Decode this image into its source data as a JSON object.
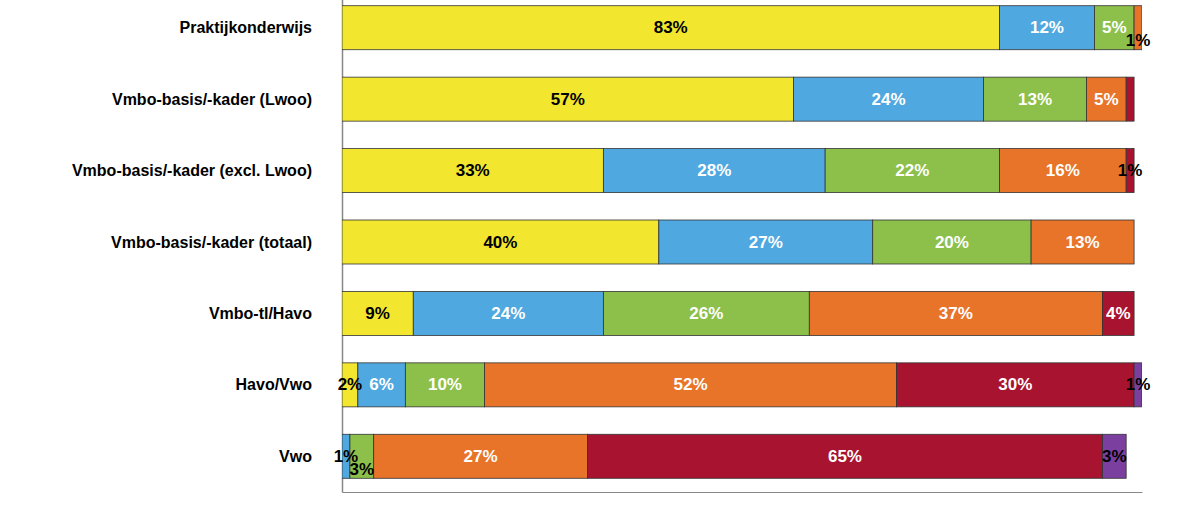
{
  "chart_data": {
    "type": "bar",
    "orientation": "horizontal",
    "stacked": true,
    "data_labels": true,
    "tick_labels": "y",
    "grid": false,
    "categories": [
      "Praktijkonderwijs",
      "Vmbo-basis/-kader (Lwoo)",
      "Vmbo-basis/-kader (excl. Lwoo)",
      "Vmbo-basis/-kader (totaal)",
      "Vmbo-tl/Havo",
      "Havo/Vwo",
      "Vwo"
    ],
    "xlim": [
      0,
      101
    ],
    "xticks": [],
    "series": [
      {
        "color": "#f2e62e",
        "values": [
          83,
          57,
          33,
          40,
          9,
          2,
          0
        ],
        "value_labels": [
          "83%",
          "57%",
          "33%",
          "40%",
          "9%",
          "2%",
          null
        ]
      },
      {
        "color": "#4fa8e0",
        "values": [
          12,
          24,
          28,
          27,
          24,
          6,
          1
        ],
        "value_labels": [
          "12%",
          "24%",
          "28%",
          "27%",
          "24%",
          "6%",
          "1%"
        ]
      },
      {
        "color": "#8cc04a",
        "values": [
          5,
          13,
          22,
          20,
          26,
          10,
          3
        ],
        "value_labels": [
          "5%",
          "13%",
          "22%",
          "20%",
          "26%",
          "10%",
          "3%"
        ]
      },
      {
        "color": "#e8742a",
        "values": [
          1,
          5,
          16,
          13,
          37,
          52,
          27
        ],
        "value_labels": [
          "1%",
          "5%",
          "16%",
          "13%",
          "37%",
          "52%",
          "27%"
        ]
      },
      {
        "color": "#a8132f",
        "values": [
          0,
          1,
          1,
          0,
          4,
          30,
          65
        ],
        "value_labels": [
          null,
          null,
          "1%",
          null,
          "4%",
          "30%",
          "65%"
        ]
      },
      {
        "color": "#7b3fa0",
        "values": [
          0,
          0,
          0,
          0,
          0,
          1,
          3
        ],
        "value_labels": [
          null,
          null,
          null,
          null,
          null,
          "1%",
          "3%"
        ]
      }
    ]
  }
}
